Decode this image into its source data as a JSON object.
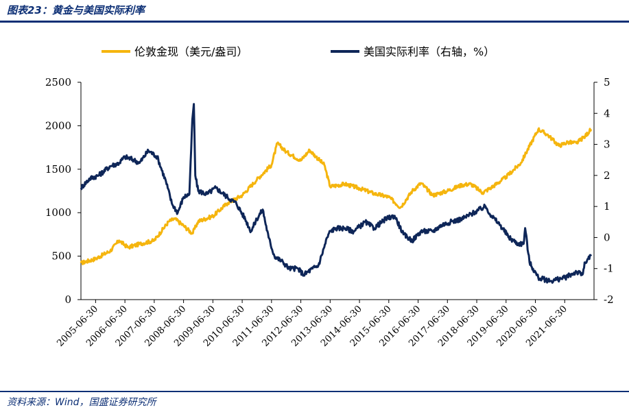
{
  "figure": {
    "title": "图表23：黄金与美国实际利率",
    "source": "资料来源：Wind，国盛证券研究所"
  },
  "chart_data": {
    "type": "line",
    "title": "黄金与美国实际利率",
    "x_tick_labels": [
      "2005-06-30",
      "2006-06-30",
      "2007-06-30",
      "2008-06-30",
      "2009-06-30",
      "2010-06-30",
      "2011-06-30",
      "2012-06-30",
      "2013-06-30",
      "2014-06-30",
      "2015-06-30",
      "2016-06-30",
      "2017-06-30",
      "2018-06-30",
      "2019-06-30",
      "2020-06-30",
      "2021-06-30"
    ],
    "left_axis": {
      "range": [
        0,
        2500
      ],
      "ticks": [
        "2500",
        "2000",
        "1500",
        "1000",
        "500",
        "0"
      ]
    },
    "right_axis": {
      "range": [
        -2,
        5
      ],
      "ticks": [
        "5",
        "4",
        "3",
        "2",
        "1",
        "0",
        "-1",
        "-2"
      ]
    },
    "legend_position": "top",
    "series": [
      {
        "name": "伦敦金现（美元/盎司）",
        "axis": "left",
        "color": "#f5b50e",
        "x": [
          2005.0,
          2005.5,
          2006.0,
          2006.3,
          2006.6,
          2007.0,
          2007.5,
          2008.0,
          2008.2,
          2008.5,
          2008.8,
          2009.0,
          2009.5,
          2010.0,
          2010.5,
          2011.0,
          2011.5,
          2011.7,
          2012.0,
          2012.5,
          2012.8,
          2013.0,
          2013.3,
          2013.5,
          2014.0,
          2014.5,
          2015.0,
          2015.5,
          2015.9,
          2016.3,
          2016.6,
          2017.0,
          2017.5,
          2018.0,
          2018.3,
          2018.7,
          2019.0,
          2019.5,
          2020.0,
          2020.6,
          2020.9,
          2021.0,
          2021.3,
          2021.6,
          2021.9,
          2022.2,
          2022.4
        ],
        "values": [
          420,
          470,
          560,
          680,
          600,
          640,
          680,
          900,
          930,
          850,
          760,
          900,
          960,
          1110,
          1200,
          1380,
          1550,
          1800,
          1700,
          1600,
          1720,
          1650,
          1550,
          1300,
          1330,
          1280,
          1220,
          1180,
          1060,
          1250,
          1340,
          1200,
          1250,
          1320,
          1330,
          1230,
          1290,
          1410,
          1570,
          1960,
          1900,
          1870,
          1770,
          1810,
          1800,
          1880,
          1960
        ]
      },
      {
        "name": "美国实际利率（右轴，%）",
        "axis": "right",
        "color": "#0e2658",
        "x": [
          2005.0,
          2005.3,
          2005.6,
          2006.0,
          2006.3,
          2006.5,
          2006.8,
          2007.0,
          2007.3,
          2007.6,
          2007.9,
          2008.1,
          2008.3,
          2008.5,
          2008.7,
          2008.8,
          2008.85,
          2008.9,
          2009.0,
          2009.3,
          2009.6,
          2010.0,
          2010.3,
          2010.6,
          2010.8,
          2011.0,
          2011.2,
          2011.4,
          2011.6,
          2011.9,
          2012.1,
          2012.4,
          2012.6,
          2012.9,
          2013.1,
          2013.4,
          2013.5,
          2013.7,
          2014.0,
          2014.3,
          2014.7,
          2015.0,
          2015.4,
          2015.7,
          2016.0,
          2016.3,
          2016.6,
          2017.0,
          2017.3,
          2017.6,
          2018.0,
          2018.4,
          2018.8,
          2019.0,
          2019.3,
          2019.6,
          2019.9,
          2020.1,
          2020.15,
          2020.3,
          2020.6,
          2021.0,
          2021.5,
          2021.9,
          2022.1,
          2022.2,
          2022.4
        ],
        "values": [
          1.6,
          1.9,
          2.0,
          2.3,
          2.4,
          2.6,
          2.5,
          2.4,
          2.8,
          2.6,
          1.8,
          1.1,
          0.8,
          1.3,
          1.4,
          3.8,
          4.3,
          2.0,
          1.5,
          1.4,
          1.6,
          1.3,
          1.1,
          0.6,
          0.2,
          0.6,
          0.9,
          0.0,
          -0.6,
          -0.8,
          -1.0,
          -1.0,
          -1.2,
          -1.0,
          -0.9,
          0.0,
          0.2,
          0.3,
          0.3,
          0.2,
          0.5,
          0.3,
          0.6,
          0.7,
          0.1,
          -0.1,
          0.2,
          0.2,
          0.4,
          0.5,
          0.6,
          0.8,
          1.0,
          0.7,
          0.4,
          0.0,
          -0.2,
          -0.2,
          0.3,
          -0.8,
          -1.3,
          -1.4,
          -1.3,
          -1.1,
          -1.2,
          -0.8,
          -0.6
        ]
      }
    ]
  }
}
